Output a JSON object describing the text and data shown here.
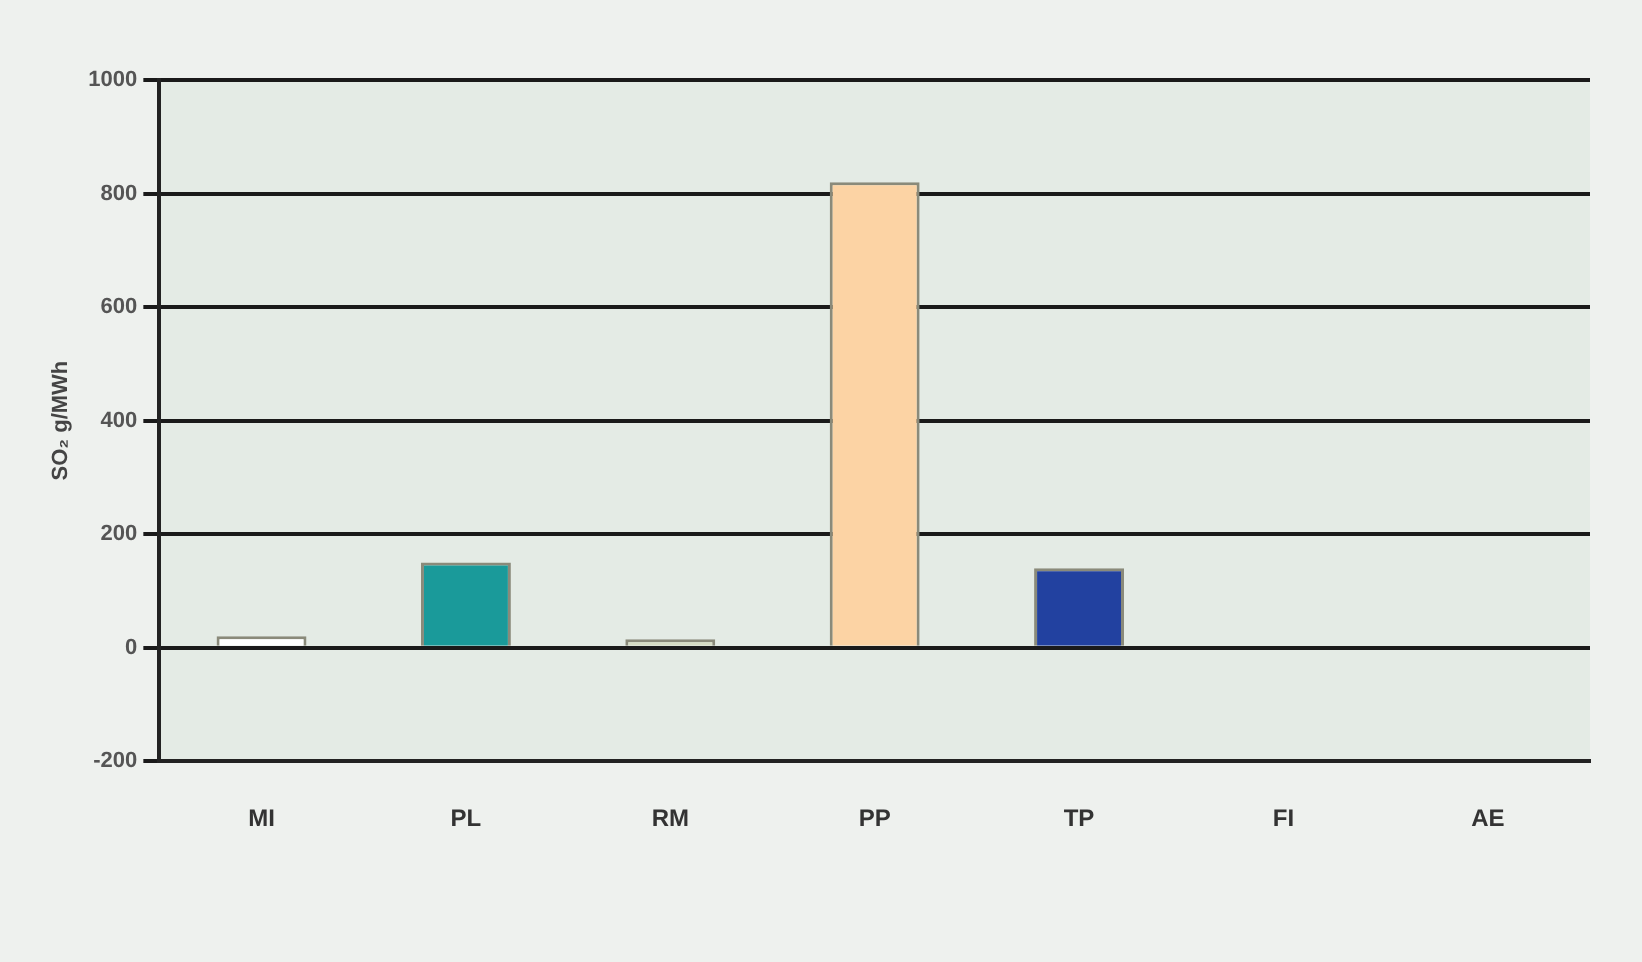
{
  "chart_data": {
    "type": "bar",
    "ylabel": "SO₂ g/MWh",
    "categories": [
      "MI",
      "PL",
      "RM",
      "PP",
      "TP",
      "FI",
      "AE"
    ],
    "values": [
      20,
      150,
      15,
      820,
      140,
      0,
      0
    ],
    "colors": [
      "#ffffff",
      "#1a9a9a",
      "#d6dcc4",
      "#fcd3a4",
      "#2241a0",
      "#cccccc",
      "#cccccc"
    ],
    "ylim": [
      -200,
      1000
    ],
    "yticks": [
      -200,
      0,
      200,
      400,
      600,
      800,
      1000
    ],
    "grid": "y",
    "legend": false
  }
}
